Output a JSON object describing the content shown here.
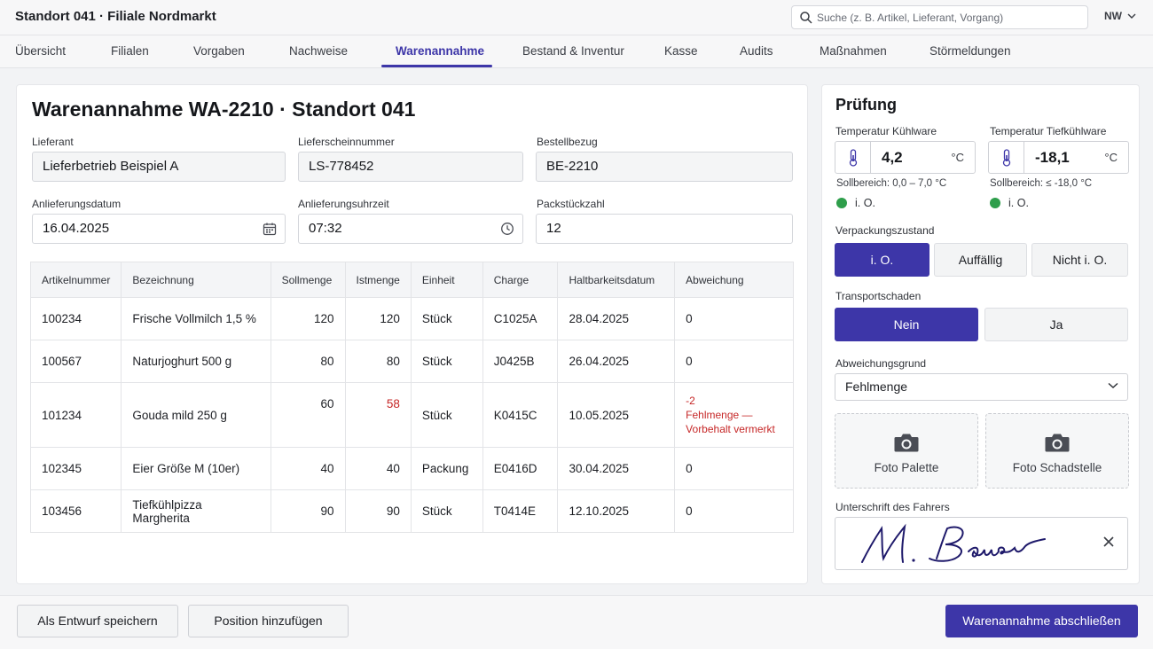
{
  "header": {
    "title": "Standort 041 · Filiale Nordmarkt",
    "search_placeholder": "Suche (z. B. Artikel, Lieferant, Vorgang)",
    "user_initials": "NW"
  },
  "nav": {
    "tabs": [
      {
        "label": "Übersicht"
      },
      {
        "label": "Filialen"
      },
      {
        "label": "Vorgaben"
      },
      {
        "label": "Nachweise"
      },
      {
        "label": "Warenannahme",
        "active": true
      },
      {
        "label": "Bestand & Inventur"
      },
      {
        "label": "Kasse"
      },
      {
        "label": "Audits"
      },
      {
        "label": "Maßnahmen"
      },
      {
        "label": "Störmeldungen"
      }
    ]
  },
  "form": {
    "title": "Warenannahme WA-2210 · Standort 041",
    "supplier_label": "Lieferant",
    "supplier_value": "Lieferbetrieb Beispiel A",
    "delivery_note_label": "Lieferscheinnummer",
    "delivery_note_value": "LS-778452",
    "order_ref_label": "Bestellbezug",
    "order_ref_value": "BE-2210",
    "date_label": "Anlieferungsdatum",
    "date_value": "16.04.2025",
    "time_label": "Anlieferungsuhrzeit",
    "time_value": "07:32",
    "packages_label": "Packstückzahl",
    "packages_value": "12"
  },
  "table": {
    "headers": [
      "Artikelnummer",
      "Bezeichnung",
      "Sollmenge",
      "Istmenge",
      "Einheit",
      "Charge",
      "Haltbarkeitsdatum",
      "Abweichung"
    ],
    "rows": [
      {
        "art": "100234",
        "name": "Frische Vollmilch 1,5 %",
        "soll": "120",
        "ist": "120",
        "unit": "Stück",
        "charge": "C1025A",
        "mhd": "28.04.2025",
        "dev": "0"
      },
      {
        "art": "100567",
        "name": "Naturjoghurt 500 g",
        "soll": "80",
        "ist": "80",
        "unit": "Stück",
        "charge": "J0425B",
        "mhd": "26.04.2025",
        "dev": "0"
      },
      {
        "art": "101234",
        "name": "Gouda mild 250 g",
        "soll": "60",
        "ist": "58",
        "unit": "Stück",
        "charge": "K0415C",
        "mhd": "10.05.2025",
        "dev": "-2",
        "dev_note_1": "Fehlmenge —",
        "dev_note_2": "Vorbehalt vermerkt"
      },
      {
        "art": "102345",
        "name": "Eier Größe M (10er)",
        "soll": "40",
        "ist": "40",
        "unit": "Packung",
        "charge": "E0416D",
        "mhd": "30.04.2025",
        "dev": "0"
      },
      {
        "art": "103456",
        "name": "Tiefkühlpizza Margherita",
        "soll": "90",
        "ist": "90",
        "unit": "Stück",
        "charge": "T0414E",
        "mhd": "12.10.2025",
        "dev": "0"
      }
    ]
  },
  "check": {
    "title": "Prüfung",
    "temp_cool_label": "Temperatur Kühlware",
    "temp_cool_value": "4,2",
    "temp_cool_range": "Sollbereich: 0,0 – 7,0 °C",
    "temp_frozen_label": "Temperatur Tiefkühlware",
    "temp_frozen_value": "-18,1",
    "temp_frozen_range": "Sollbereich: ≤ -18,0 °C",
    "unit": "°C",
    "ok_text": "i. O.",
    "packaging_label": "Verpackungszustand",
    "packaging_options": [
      "i. O.",
      "Auffällig",
      "Nicht i. O."
    ],
    "transport_label": "Transportschaden",
    "transport_options": [
      "Nein",
      "Ja"
    ],
    "reason_label": "Abweichungsgrund",
    "reason_value": "Fehlmenge",
    "photo_pallet": "Foto Palette",
    "photo_damage": "Foto Schadstelle",
    "signature_label": "Unterschrift des Fahrers",
    "signature_name": "M. Bauer"
  },
  "footer": {
    "draft_label": "Als Entwurf speichern",
    "add_label": "Position hinzufügen",
    "complete_label": "Warenannahme abschließen"
  },
  "colors": {
    "accent": "#3d36a8",
    "ok": "#2e9e4b",
    "error": "#c62828"
  }
}
